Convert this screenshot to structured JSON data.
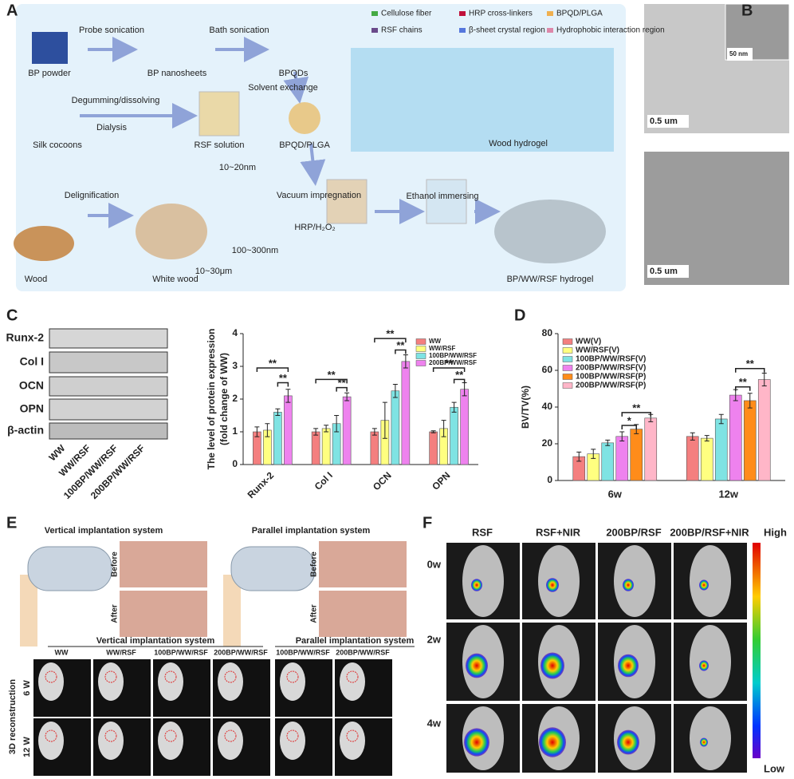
{
  "panels": {
    "letters": [
      "A",
      "B",
      "C",
      "D",
      "E",
      "F"
    ]
  },
  "panel_a": {
    "texts": [
      "BP powder",
      "Probe sonication",
      "BP nanosheets",
      "Bath sonication",
      "BPQDs",
      "Solvent exchange",
      "Silk cocoons",
      "Degumming/dissolving",
      "Dialysis",
      "RSF solution",
      "BPQD/PLGA",
      "Wood",
      "Delignification",
      "White wood",
      "10~20nm",
      "10~30μm",
      "100~300nm",
      "Vacuum impregnation",
      "HRP/H₂O₂",
      "Ethanol immersing",
      "BP/WW/RSF hydrogel",
      "Wood hydrogel"
    ],
    "legend": [
      "Cellulose fiber",
      "HRP cross-linkers",
      "BPQD/PLGA",
      "RSF chains",
      "β-sheet crystal region",
      "Hydrophobic interaction region"
    ]
  },
  "panel_b": {
    "scale_bars": [
      "0.5 um",
      "50 nm",
      "0.5 um"
    ]
  },
  "panel_c_blot": {
    "proteins": [
      "Runx-2",
      "Col I",
      "OCN",
      "OPN",
      "β-actin"
    ],
    "lanes": [
      "WW",
      "WW/RSF",
      "100BP/WW/RSF",
      "200BP/WW/RSF"
    ]
  },
  "panel_e": {
    "titles": [
      "Vertical implantation system",
      "Parallel implantation system"
    ],
    "photo_labels": [
      "Before",
      "After",
      "Before",
      "After"
    ],
    "groups": [
      "Vertical implantation system",
      "Parallel implantation system"
    ],
    "columns": [
      "WW",
      "WW/RSF",
      "100BP/WW/RSF",
      "200BP/WW/RSF",
      "100BP/WW/RSF",
      "200BP/WW/RSF"
    ],
    "rows": [
      "6 W",
      "12 W"
    ],
    "side_label": "3D reconstruction"
  },
  "panel_f": {
    "columns": [
      "RSF",
      "RSF+NIR",
      "200BP/RSF",
      "200BP/RSF+NIR"
    ],
    "rows": [
      "0w",
      "2w",
      "4w"
    ],
    "scale": [
      "High",
      "Low"
    ]
  },
  "chart_data": [
    {
      "type": "bar",
      "y_label": [
        "The level of protein expression",
        "(fold change of WW)"
      ],
      "categories": [
        "Runx-2",
        "Col I",
        "OCN",
        "OPN"
      ],
      "series": [
        {
          "name": "WW",
          "color": "#f47f7f",
          "values": [
            1.0,
            1.0,
            1.0,
            1.0
          ],
          "errors": [
            0.15,
            0.1,
            0.1,
            0.03
          ]
        },
        {
          "name": "WW/RSF",
          "color": "#ffff80",
          "values": [
            1.05,
            1.1,
            1.35,
            1.1
          ],
          "errors": [
            0.2,
            0.1,
            0.55,
            0.25
          ]
        },
        {
          "name": "100BP/WW/RSF",
          "color": "#7fe3e3",
          "values": [
            1.6,
            1.25,
            2.25,
            1.75
          ],
          "errors": [
            0.1,
            0.25,
            0.2,
            0.15
          ]
        },
        {
          "name": "200BP/WW/RSF",
          "color": "#ee82ee",
          "values": [
            2.1,
            2.07,
            3.15,
            2.3
          ],
          "errors": [
            0.2,
            0.12,
            0.2,
            0.2
          ]
        }
      ],
      "ylim": [
        0,
        4
      ],
      "yticks": [
        0,
        1,
        2,
        3,
        4
      ],
      "legend": "upper right",
      "annotations": [
        "**",
        "**",
        "**",
        "**",
        "**",
        "**",
        "**",
        "**"
      ]
    },
    {
      "type": "bar",
      "y_label": [
        "BV/TV(%)"
      ],
      "categories": [
        "6w",
        "12w"
      ],
      "series": [
        {
          "name": "WW(V)",
          "color": "#f47f7f",
          "values": [
            13,
            24
          ],
          "errors": [
            2.5,
            2
          ]
        },
        {
          "name": "WW/RSF(V)",
          "color": "#ffff80",
          "values": [
            14.5,
            23
          ],
          "errors": [
            2.5,
            1.5
          ]
        },
        {
          "name": "100BP/WW/RSF(V)",
          "color": "#7fe3e3",
          "values": [
            20.5,
            33.5
          ],
          "errors": [
            1.5,
            2.5
          ]
        },
        {
          "name": "200BP/WW/RSF(V)",
          "color": "#ee82ee",
          "values": [
            24,
            46.5
          ],
          "errors": [
            2.5,
            3
          ]
        },
        {
          "name": "100BP/WW/RSF(P)",
          "color": "#ff8c1a",
          "values": [
            28,
            43.5
          ],
          "errors": [
            2.5,
            4
          ]
        },
        {
          "name": "200BP/WW/RSF(P)",
          "color": "#ffb6c8",
          "values": [
            34,
            55
          ],
          "errors": [
            2,
            3.5
          ]
        }
      ],
      "ylim": [
        0,
        80
      ],
      "yticks": [
        0,
        20,
        40,
        60,
        80
      ],
      "legend": "upper left",
      "annotations": [
        "*",
        "**",
        "**",
        "**"
      ]
    }
  ]
}
